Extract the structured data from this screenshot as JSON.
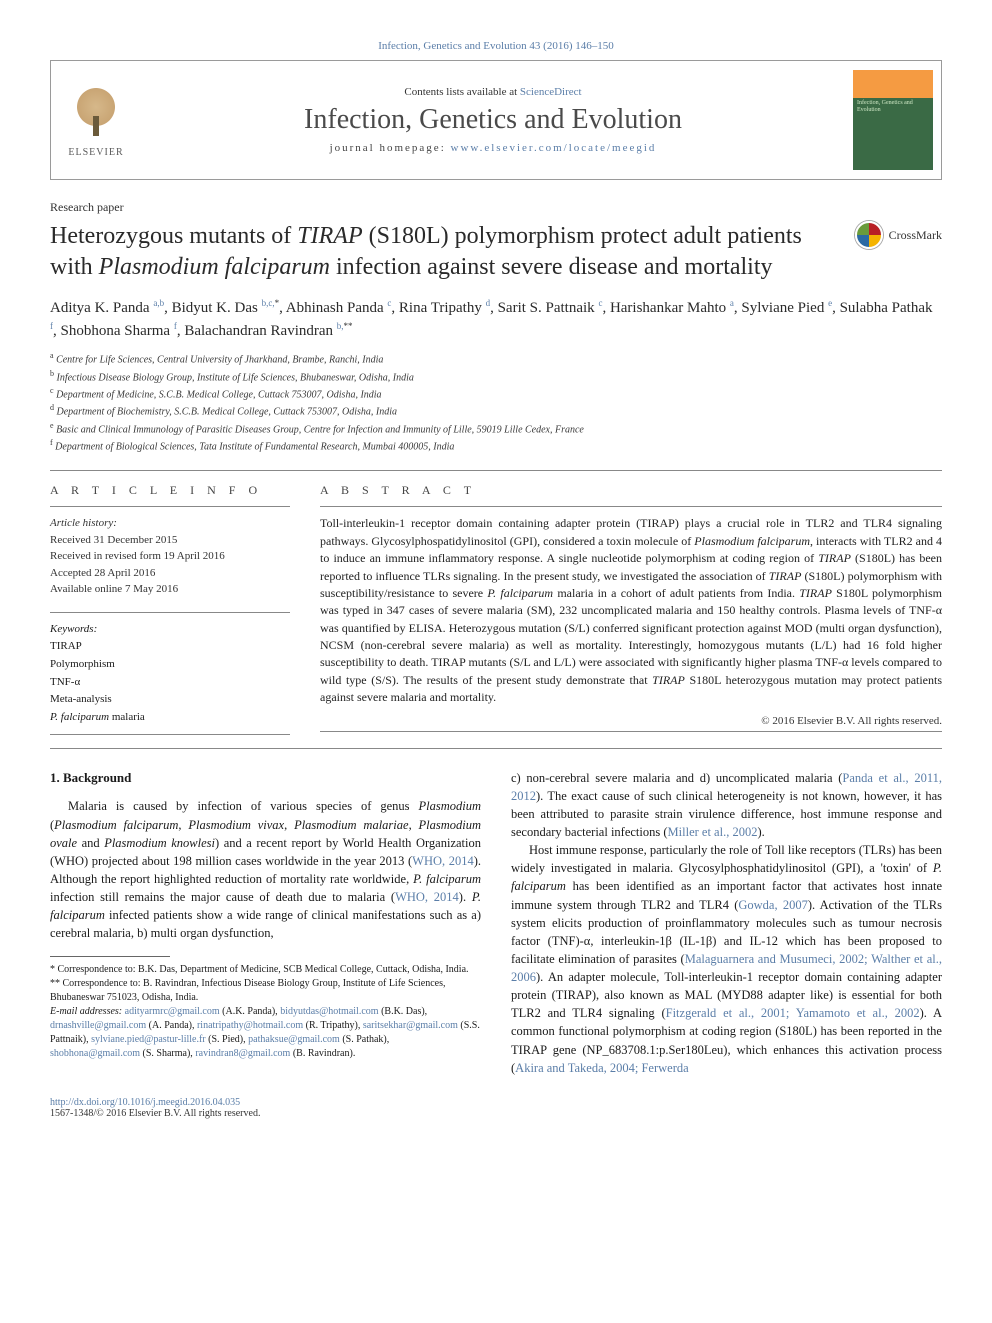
{
  "topBar": "Infection, Genetics and Evolution 43 (2016) 146–150",
  "header": {
    "contentsLine_pre": "Contents lists available at ",
    "contentsLine_link": "ScienceDirect",
    "journalName": "Infection, Genetics and Evolution",
    "homepage_pre": "journal homepage: ",
    "homepage_link": "www.elsevier.com/locate/meegid",
    "elsevierLabel": "ELSEVIER",
    "coverTitle": "Infection, Genetics and Evolution"
  },
  "articleType": "Research paper",
  "title_html": "Heterozygous mutants of <em>TIRAP</em> (S180L) polymorphism protect adult patients with <em>Plasmodium falciparum</em> infection against severe disease and mortality",
  "crossmark": "CrossMark",
  "authors_html": "Aditya K. Panda <sup>a,b</sup>, Bidyut K. Das <sup>b,c,</sup><sup class='black'>*</sup>, Abhinash Panda <sup>c</sup>, Rina Tripathy <sup>d</sup>, Sarit S. Pattnaik <sup>c</sup>, Harishankar Mahto <sup>a</sup>, Sylviane Pied <sup>e</sup>, Sulabha Pathak <sup>f</sup>, Shobhona Sharma <sup>f</sup>, Balachandran Ravindran <sup>b,</sup><sup class='black'>**</sup>",
  "affiliations": [
    {
      "sup": "a",
      "text": "Centre for Life Sciences, Central University of Jharkhand, Brambe, Ranchi, India"
    },
    {
      "sup": "b",
      "text": "Infectious Disease Biology Group, Institute of Life Sciences, Bhubaneswar, Odisha, India"
    },
    {
      "sup": "c",
      "text": "Department of Medicine, S.C.B. Medical College, Cuttack 753007, Odisha, India"
    },
    {
      "sup": "d",
      "text": "Department of Biochemistry, S.C.B. Medical College, Cuttack 753007, Odisha, India"
    },
    {
      "sup": "e",
      "text": "Basic and Clinical Immunology of Parasitic Diseases Group, Centre for Infection and Immunity of Lille, 59019 Lille Cedex, France"
    },
    {
      "sup": "f",
      "text": "Department of Biological Sciences, Tata Institute of Fundamental Research, Mumbai 400005, India"
    }
  ],
  "infoHeading": "A R T I C L E   I N F O",
  "articleHistoryLabel": "Article history:",
  "historyLines": [
    "Received 31 December 2015",
    "Received in revised form 19 April 2016",
    "Accepted 28 April 2016",
    "Available online 7 May 2016"
  ],
  "keywordsLabel": "Keywords:",
  "keywords": [
    "TIRAP",
    "Polymorphism",
    "TNF-α",
    "Meta-analysis",
    "<em>P. falciparum</em> malaria"
  ],
  "abstractHeading": "A B S T R A C T",
  "abstract_html": "Toll-interleukin-1 receptor domain containing adapter protein (TIRAP) plays a crucial role in TLR2 and TLR4 signaling pathways. Glycosylphospatidylinositol (GPI), considered a toxin molecule of <em>Plasmodium falciparum</em>, interacts with TLR2 and 4 to induce an immune inflammatory response. A single nucleotide polymorphism at coding region of <em>TIRAP</em> (S180L) has been reported to influence TLRs signaling. In the present study, we investigated the association of <em>TIRAP</em> (S180L) polymorphism with susceptibility/resistance to severe <em>P. falciparum</em> malaria in a cohort of adult patients from India. <em>TIRAP</em> S180L polymorphism was typed in 347 cases of severe malaria (SM), 232 uncomplicated malaria and 150 healthy controls. Plasma levels of TNF-α was quantified by ELISA. Heterozygous mutation (S/L) conferred significant protection against MOD (multi organ dysfunction), NCSM (non-cerebral severe malaria) as well as mortality. Interestingly, homozygous mutants (L/L) had 16 fold higher susceptibility to death. TIRAP mutants (S/L and L/L) were associated with significantly higher plasma TNF-α levels compared to wild type (S/S). The results of the present study demonstrate that <em>TIRAP</em> S180L heterozygous mutation may protect patients against severe malaria and mortality.",
  "copyright": "© 2016 Elsevier B.V. All rights reserved.",
  "sectionHeading": "1. Background",
  "col1_html": "Malaria is caused by infection of various species of genus <em>Plasmodium</em> (<em>Plasmodium falciparum</em>, <em>Plasmodium vivax</em>, <em>Plasmodium malariae</em>, <em>Plasmodium ovale</em> and <em>Plasmodium knowlesi</em>) and a recent report by World Health Organization (WHO) projected about 198 million cases worldwide in the year 2013 (<a>WHO, 2014</a>). Although the report highlighted reduction of mortality rate worldwide, <em>P. falciparum</em> infection still remains the major cause of death due to malaria (<a>WHO, 2014</a>). <em>P. falciparum</em> infected patients show a wide range of clinical manifestations such as a) cerebral malaria, b) multi organ dysfunction,",
  "col2_p1_html": "c) non-cerebral severe malaria and d) uncomplicated malaria (<a>Panda et al., 2011, 2012</a>). The exact cause of such clinical heterogeneity is not known, however, it has been attributed to parasite strain virulence difference, host immune response and secondary bacterial infections (<a>Miller et al., 2002</a>).",
  "col2_p2_html": "Host immune response, particularly the role of Toll like receptors (TLRs) has been widely investigated in malaria. Glycosylphosphatidylinositol (GPI), a 'toxin' of <em>P. falciparum</em> has been identified as an important factor that activates host innate immune system through TLR2 and TLR4 (<a>Gowda, 2007</a>). Activation of the TLRs system elicits production of proinflammatory molecules such as tumour necrosis factor (TNF)-α, interleukin-1β (IL-1β) and IL-12 which has been proposed to facilitate elimination of parasites (<a>Malaguarnera and Musumeci, 2002; Walther et al., 2006</a>). An adapter molecule, Toll-interleukin-1 receptor domain containing adapter protein (TIRAP), also known as MAL (MYD88 adapter like) is essential for both TLR2 and TLR4 signaling (<a>Fitzgerald et al., 2001; Yamamoto et al., 2002</a>). A common functional polymorphism at coding region (S180L) has been reported in the TIRAP gene (NP_683708.1:p.Ser180Leu), which enhances this activation process (<a>Akira and Takeda, 2004; Ferwerda</a>",
  "footnotes": {
    "corr1": "* Correspondence to: B.K. Das, Department of Medicine, SCB Medical College, Cuttack, Odisha, India.",
    "corr2": "** Correspondence to: B. Ravindran, Infectious Disease Biology Group, Institute of Life Sciences, Bhubaneswar 751023, Odisha, India.",
    "emails_label": "E-mail addresses:",
    "emails_html": "<a>adityarmrc@gmail.com</a> (A.K. Panda), <a>bidyutdas@hotmail.com</a> (B.K. Das), <a>drnashville@gmail.com</a> (A. Panda), <a>rinatripathy@hotmail.com</a> (R. Tripathy), <a>saritsekhar@gmail.com</a> (S.S. Pattnaik), <a>sylviane.pied@pastur-lille.fr</a> (S. Pied), <a>pathaksue@gmail.com</a> (S. Pathak), <a>shobhona@gmail.com</a> (S. Sharma), <a>ravindran8@gmail.com</a> (B. Ravindran)."
  },
  "doi": "http://dx.doi.org/10.1016/j.meegid.2016.04.035",
  "issn": "1567-1348/© 2016 Elsevier B.V. All rights reserved.",
  "colors": {
    "link": "#5b7ea8",
    "text": "#1a1a1a",
    "rule": "#888888"
  }
}
